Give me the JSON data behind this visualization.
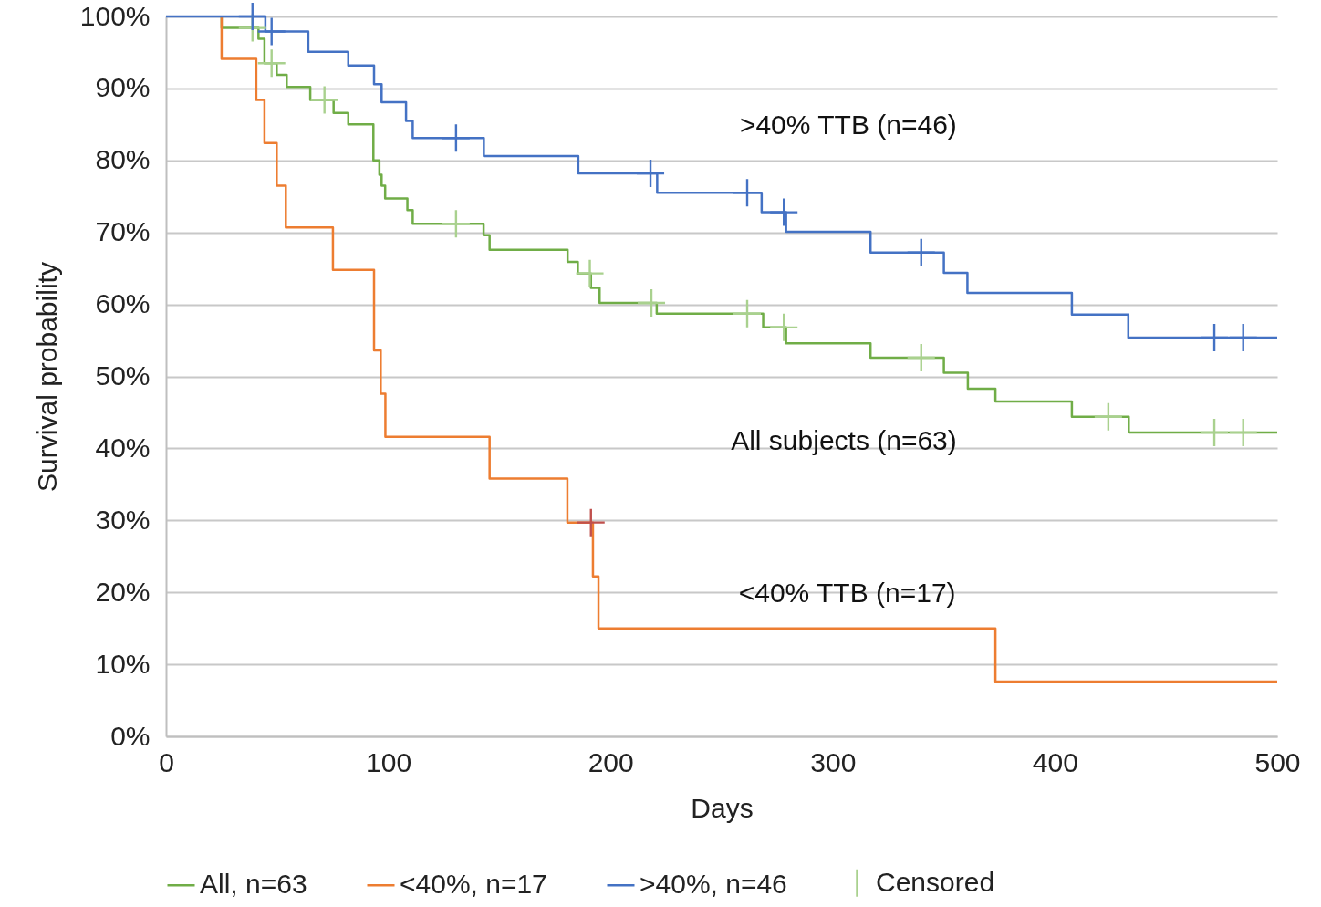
{
  "chart_data": {
    "type": "step",
    "xlabel": "Days",
    "ylabel": "Survival probability",
    "xlim": [
      0,
      500
    ],
    "xticks": [
      0,
      100,
      200,
      300,
      400,
      500
    ],
    "ylim": [
      0,
      100
    ],
    "yticks": [
      {
        "value": 0,
        "label": "0%"
      },
      {
        "value": 10,
        "label": "10%"
      },
      {
        "value": 20,
        "label": "20%"
      },
      {
        "value": 30,
        "label": "30%"
      },
      {
        "value": 40,
        "label": "40%"
      },
      {
        "value": 50,
        "label": "50%"
      },
      {
        "value": 60,
        "label": "60%"
      },
      {
        "value": 70,
        "label": "70%"
      },
      {
        "value": 80,
        "label": "80%"
      },
      {
        "value": 90,
        "label": "90%"
      },
      {
        "value": 100,
        "label": "100%"
      }
    ],
    "grid": "y",
    "legend": "bottom",
    "annotations": [
      ">40% TTB (n=46)",
      "All subjects (n=63)",
      "<40% TTB (n=17)"
    ],
    "series": [
      {
        "type": "step",
        "name": "All, n=63",
        "color": "#70ad47",
        "x": [
          25,
          25,
          41.6,
          44.3,
          49.8,
          54.3,
          64.9,
          75.4,
          82,
          93.3,
          96,
          97,
          98.6,
          108.6,
          111,
          142.9,
          145.6,
          180.7,
          185.3,
          191.2,
          195.1,
          220.8,
          268.7,
          279,
          317,
          350,
          360.8,
          373.2,
          407.6,
          433.2,
          500
        ],
        "values": [
          100,
          98.4,
          96.9,
          93.5,
          91.9,
          90.2,
          88.4,
          86.6,
          85.0,
          80.0,
          78.0,
          76.5,
          74.7,
          73.1,
          71.2,
          69.6,
          67.6,
          65.9,
          64.3,
          62.3,
          60.2,
          58.7,
          56.8,
          54.6,
          52.6,
          50.5,
          48.3,
          46.5,
          44.4,
          42.2,
          42.2
        ]
      },
      {
        "type": "step",
        "name": "<40%, n=17",
        "color": "#ed7d31",
        "x": [
          25,
          25,
          40.6,
          44.3,
          49.8,
          53.9,
          75.1,
          93.6,
          96.6,
          98.7,
          145.6,
          180.6,
          192.1,
          194.6,
          373.2,
          500
        ],
        "values": [
          100,
          94.1,
          88.4,
          82.4,
          76.5,
          70.7,
          64.8,
          53.6,
          47.6,
          41.6,
          35.8,
          29.7,
          22.2,
          15.0,
          7.6,
          7.6
        ]
      },
      {
        "type": "step",
        "name": ">40%, n=46",
        "color": "#4472c4",
        "x": [
          0,
          44.7,
          64,
          82,
          93.6,
          97,
          108,
          111,
          143,
          185.5,
          221,
          268,
          279,
          317,
          350,
          360.6,
          407.6,
          433,
          500
        ],
        "values": [
          100,
          97.9,
          95.1,
          93.2,
          90.6,
          88.1,
          85.5,
          83.1,
          80.6,
          78.2,
          75.5,
          72.8,
          70.1,
          67.2,
          64.4,
          61.6,
          58.6,
          55.4,
          55.4
        ]
      },
      {
        "type": "scatter",
        "name": "Censored",
        "color": "#a9d18e",
        "marker": "cross",
        "x": [
          38.9,
          47.5,
          71.3,
          130.5,
          190.7,
          218.4,
          261.5,
          278,
          339.8,
          424,
          471.7,
          484.7
        ],
        "values": [
          98.4,
          93.5,
          88.4,
          71.2,
          64.3,
          60.2,
          58.7,
          56.8,
          52.6,
          44.4,
          42.2,
          42.2
        ]
      },
      {
        "type": "scatter",
        "color": "#4472c4",
        "marker": "cross",
        "x": [
          38.9,
          47.5,
          130.5,
          218,
          261.5,
          278,
          339.8,
          471.7,
          484.7
        ],
        "values": [
          100,
          97.9,
          83.1,
          78.2,
          75.5,
          72.8,
          67.2,
          55.4,
          55.4
        ]
      },
      {
        "type": "scatter",
        "color": "#c0504d",
        "marker": "cross",
        "x": [
          191.2
        ],
        "values": [
          29.7
        ]
      }
    ]
  }
}
